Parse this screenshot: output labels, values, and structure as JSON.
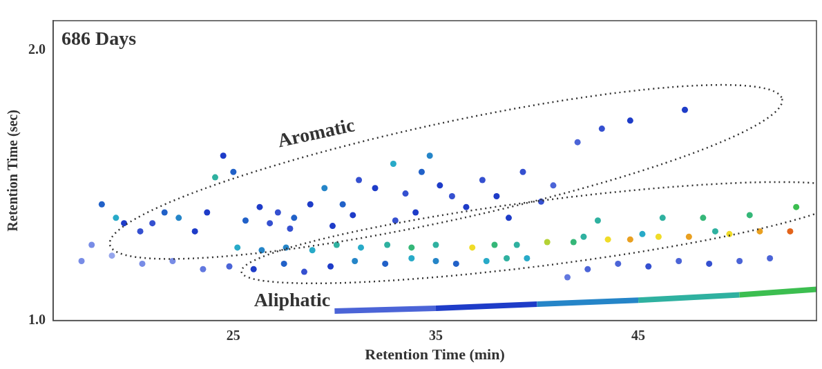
{
  "chart_data": {
    "type": "scatter",
    "title": "686 Days",
    "x_label": "Retention Time (min)",
    "y_label": "Retention Time (sec)",
    "xlim": [
      16.1,
      53.8
    ],
    "xticks": [
      25,
      35,
      45
    ],
    "ylim": [
      1.0,
      2.11
    ],
    "yticks": [
      {
        "value": 1.0,
        "label": "1.0"
      },
      {
        "value": 2.0,
        "label": "2.0"
      }
    ],
    "grid": false,
    "tick_labels": true,
    "series": [
      {
        "type": "scatter",
        "marker": "circle",
        "x": [
          18.5,
          19.2,
          19.6,
          21.0,
          22.3,
          23.1,
          24.1,
          24.5,
          25.0,
          25.6,
          26.3,
          27.2,
          28.0,
          28.8,
          29.5,
          30.4,
          31.2,
          32.0,
          32.9,
          33.5,
          34.3,
          34.7,
          35.2,
          35.8,
          36.5,
          37.3,
          38.0,
          39.3,
          40.8,
          42.0,
          43.2,
          44.6,
          47.3,
          40.2,
          38.6,
          30.9,
          27.8,
          23.7,
          21.6,
          20.4,
          26.8,
          29.9,
          33.0,
          34.0,
          17.5,
          18.0,
          19.0,
          20.5,
          22.0,
          23.5,
          24.8,
          26.0,
          27.5,
          28.5,
          29.8,
          31.0,
          32.5,
          33.8,
          35.0,
          36.0,
          37.5,
          38.5,
          39.5,
          41.5,
          42.5,
          44.0,
          45.5,
          47.0,
          48.5,
          50.0,
          51.5,
          25.2,
          26.4,
          27.6,
          28.9,
          30.1,
          31.3,
          32.6,
          33.8,
          35.0,
          36.8,
          37.9,
          39.0,
          40.5,
          41.8,
          43.5,
          44.6,
          46.0,
          47.5,
          49.5,
          51.0,
          52.5,
          43.0,
          46.2,
          48.2,
          50.5,
          52.8,
          42.3,
          45.2,
          48.8
        ],
        "values": [
          1.43,
          1.38,
          1.36,
          1.36,
          1.38,
          1.33,
          1.53,
          1.61,
          1.55,
          1.37,
          1.42,
          1.4,
          1.38,
          1.43,
          1.49,
          1.43,
          1.52,
          1.49,
          1.58,
          1.47,
          1.55,
          1.61,
          1.5,
          1.46,
          1.42,
          1.52,
          1.46,
          1.55,
          1.5,
          1.66,
          1.71,
          1.74,
          1.78,
          1.44,
          1.38,
          1.39,
          1.34,
          1.4,
          1.4,
          1.33,
          1.36,
          1.35,
          1.37,
          1.4,
          1.22,
          1.28,
          1.24,
          1.21,
          1.22,
          1.19,
          1.2,
          1.19,
          1.21,
          1.18,
          1.2,
          1.22,
          1.21,
          1.23,
          1.22,
          1.21,
          1.22,
          1.23,
          1.23,
          1.16,
          1.19,
          1.21,
          1.2,
          1.22,
          1.21,
          1.22,
          1.23,
          1.27,
          1.26,
          1.27,
          1.26,
          1.28,
          1.27,
          1.28,
          1.27,
          1.28,
          1.27,
          1.28,
          1.28,
          1.29,
          1.29,
          1.3,
          1.3,
          1.31,
          1.31,
          1.32,
          1.33,
          1.33,
          1.37,
          1.38,
          1.38,
          1.39,
          1.42,
          1.31,
          1.32,
          1.33
        ],
        "intensity": [
          45,
          55,
          40,
          35,
          50,
          40,
          60,
          40,
          45,
          45,
          40,
          35,
          45,
          40,
          50,
          45,
          35,
          40,
          55,
          35,
          45,
          50,
          40,
          35,
          40,
          35,
          40,
          35,
          30,
          30,
          35,
          40,
          40,
          35,
          40,
          40,
          35,
          40,
          45,
          35,
          35,
          40,
          35,
          40,
          20,
          20,
          15,
          20,
          20,
          25,
          30,
          40,
          45,
          35,
          40,
          50,
          45,
          55,
          50,
          45,
          55,
          60,
          55,
          25,
          30,
          30,
          35,
          30,
          35,
          30,
          30,
          55,
          50,
          50,
          55,
          60,
          55,
          60,
          65,
          60,
          85,
          65,
          60,
          80,
          65,
          85,
          90,
          85,
          90,
          85,
          90,
          95,
          60,
          60,
          65,
          65,
          70,
          60,
          55,
          60
        ]
      },
      {
        "type": "line",
        "line_style": "solid",
        "x": [
          30.0,
          35.0,
          40.0,
          45.0,
          50.0,
          53.8
        ],
        "values": [
          1.035,
          1.045,
          1.06,
          1.075,
          1.095,
          1.115
        ],
        "intensity": [
          30,
          40,
          50,
          60,
          70,
          75
        ]
      }
    ],
    "regions": [
      {
        "label": "Aromatic",
        "from": [
          18.9,
          1.28
        ],
        "to": [
          52.1,
          1.82
        ],
        "half_width": 0.18,
        "line_style": "dotted",
        "label_at": [
          29.1,
          1.69
        ]
      },
      {
        "label": "Aliphatic",
        "from": [
          25.4,
          1.18
        ],
        "to": [
          55.5,
          1.47
        ],
        "half_width": 0.12,
        "line_style": "dotted",
        "label_at": [
          27.9,
          1.07
        ]
      }
    ]
  }
}
